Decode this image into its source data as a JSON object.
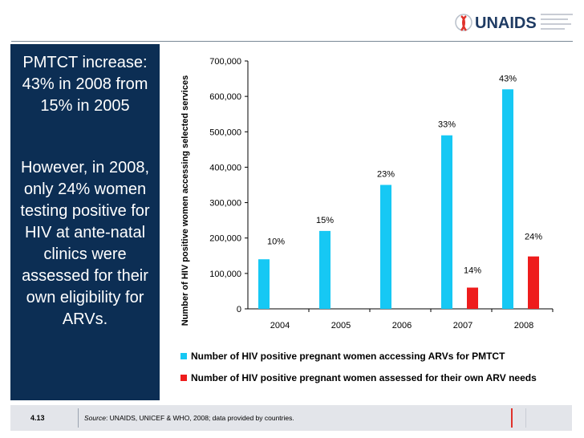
{
  "logo": {
    "text": "UNAIDS"
  },
  "left_panel": {
    "paragraph1": "PMTCT increase: 43% in 2008 from 15% in 2005",
    "paragraph2": "However, in 2008, only 24% women testing positive for HIV at ante-natal clinics were assessed for their own eligibility for ARVs."
  },
  "footer": {
    "slide_number": "4.13",
    "source_label": "Source",
    "source_text": ": UNAIDS, UNICEF & WHO, 2008; data provided by countries."
  },
  "colors": {
    "series1": "#16c8f4",
    "series2": "#ee1c1c",
    "panel": "#0c2e54"
  },
  "chart_data": {
    "type": "bar",
    "title": "",
    "xlabel": "",
    "ylabel": "Number of HIV positive women accessing selected services",
    "ylim": [
      0,
      700000
    ],
    "yticks": [
      0,
      100000,
      200000,
      300000,
      400000,
      500000,
      600000,
      700000
    ],
    "ytick_labels": [
      "0",
      "100,000",
      "200,000",
      "300,000",
      "400,000",
      "500,000",
      "600,000",
      "700,000"
    ],
    "categories": [
      "2004",
      "2005",
      "2006",
      "2007",
      "2008"
    ],
    "series": [
      {
        "name": "Number of HIV positive pregnant women accessing ARVs for PMTCT",
        "values": [
          140000,
          220000,
          350000,
          490000,
          620000
        ],
        "labels": [
          "10%",
          "15%",
          "23%",
          "33%",
          "43%"
        ]
      },
      {
        "name": "Number of HIV positive pregnant women assessed for their own ARV needs",
        "values": [
          null,
          null,
          null,
          60000,
          148000
        ],
        "labels": [
          null,
          null,
          null,
          "14%",
          "24%"
        ]
      }
    ]
  }
}
